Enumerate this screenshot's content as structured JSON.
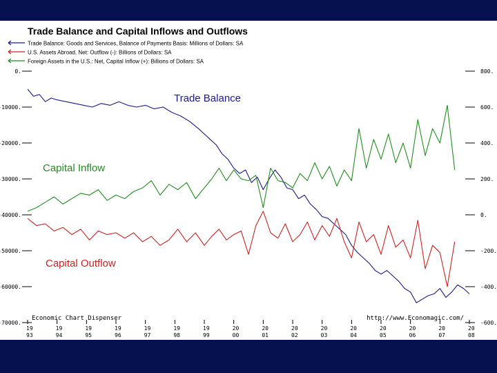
{
  "chart_data": {
    "type": "line",
    "title": "Trade Balance and Capital Inflows and Outflows",
    "legend_placement": "top-left",
    "x_ticks": [
      "19 93",
      "19 94",
      "19 95",
      "19 96",
      "19 97",
      "19 98",
      "19 99",
      "20 00",
      "20 01",
      "20 02",
      "20 03",
      "20 04",
      "20 05",
      "20 06",
      "20 07",
      "20 08"
    ],
    "left_axis": {
      "ticks": [
        "0.",
        "-10000.",
        "-20000.",
        "-30000.",
        "-40000.",
        "-50000.",
        "-60000.",
        "-70000."
      ],
      "ylim": [
        -70000,
        0
      ]
    },
    "right_axis": {
      "ticks": [
        "800.",
        "600.",
        "400.",
        "200.",
        "0.",
        "-200.",
        "-400.",
        "-600."
      ],
      "ylim": [
        -600,
        800
      ]
    },
    "series": [
      {
        "name": "Trade Balance: Goods and Services, Balance of Payments Basis: Millions of Dollars: SA",
        "axis": "left",
        "color": "#1a1a8c",
        "x": [
          1993.0,
          1993.2,
          1993.4,
          1993.6,
          1993.8,
          1994.0,
          1994.3,
          1994.6,
          1994.9,
          1995.2,
          1995.5,
          1995.8,
          1996.1,
          1996.4,
          1996.7,
          1997.0,
          1997.3,
          1997.6,
          1997.9,
          1998.2,
          1998.5,
          1998.8,
          1999.0,
          1999.2,
          1999.4,
          1999.6,
          1999.8,
          2000.0,
          2000.2,
          2000.4,
          2000.6,
          2000.8,
          2001.0,
          2001.2,
          2001.4,
          2001.6,
          2001.8,
          2002.0,
          2002.2,
          2002.4,
          2002.6,
          2002.8,
          2003.0,
          2003.2,
          2003.4,
          2003.6,
          2003.8,
          2004.0,
          2004.2,
          2004.4,
          2004.6,
          2004.8,
          2005.0,
          2005.2,
          2005.4,
          2005.6,
          2005.8,
          2006.0,
          2006.2,
          2006.4,
          2006.6,
          2006.8,
          2007.0,
          2007.2,
          2007.4,
          2007.6,
          2007.8,
          2008.0
        ],
        "values": [
          -5000,
          -7000,
          -6500,
          -8500,
          -7500,
          -8000,
          -8500,
          -9000,
          -9500,
          -10000,
          -9000,
          -9500,
          -8500,
          -9500,
          -10000,
          -9500,
          -10500,
          -10000,
          -11500,
          -12500,
          -14000,
          -16000,
          -17500,
          -19000,
          -20500,
          -23000,
          -24500,
          -27000,
          -28500,
          -27500,
          -31000,
          -29500,
          -33000,
          -30000,
          -27500,
          -29500,
          -32500,
          -33000,
          -35500,
          -34500,
          -37000,
          -38500,
          -40500,
          -41000,
          -42500,
          -44000,
          -45500,
          -48500,
          -50500,
          -52000,
          -53500,
          -55500,
          -56500,
          -55500,
          -57000,
          -58500,
          -60500,
          -61500,
          -64500,
          -63500,
          -62500,
          -62000,
          -60500,
          -63000,
          -61500,
          -59500,
          -60500,
          -62000
        ]
      },
      {
        "name": "U.S. Assets Abroad, Net: Outflow (-): Billions of Dollars: SA",
        "axis": "right",
        "color": "#cc2222",
        "x": [
          1993.0,
          1993.3,
          1993.6,
          1993.9,
          1994.2,
          1994.5,
          1994.8,
          1995.1,
          1995.4,
          1995.7,
          1996.0,
          1996.3,
          1996.6,
          1996.9,
          1997.2,
          1997.5,
          1997.8,
          1998.1,
          1998.4,
          1998.7,
          1999.0,
          1999.25,
          1999.5,
          1999.75,
          2000.0,
          2000.25,
          2000.5,
          2000.75,
          2001.0,
          2001.25,
          2001.5,
          2001.75,
          2002.0,
          2002.25,
          2002.5,
          2002.75,
          2003.0,
          2003.25,
          2003.5,
          2003.75,
          2004.0,
          2004.25,
          2004.5,
          2004.75,
          2005.0,
          2005.25,
          2005.5,
          2005.75,
          2006.0,
          2006.25,
          2006.5,
          2006.75,
          2007.0,
          2007.25,
          2007.5
        ],
        "values": [
          -20,
          -60,
          -50,
          -90,
          -70,
          -110,
          -80,
          -140,
          -90,
          -110,
          -100,
          -130,
          -100,
          -150,
          -120,
          -170,
          -140,
          -80,
          -150,
          -100,
          -170,
          -120,
          -80,
          -140,
          -110,
          -90,
          -220,
          -60,
          20,
          -100,
          -130,
          -50,
          -150,
          -110,
          -40,
          -140,
          -60,
          -120,
          -20,
          -150,
          -240,
          -40,
          -150,
          -110,
          -220,
          -60,
          -180,
          -140,
          -240,
          -30,
          -300,
          -170,
          -210,
          -400,
          -150
        ]
      },
      {
        "name": "Foreign Assets in the U.S.: Net, Capital Inflow (+): Billions of Dollars: SA",
        "axis": "right",
        "color": "#228b22",
        "x": [
          1993.0,
          1993.3,
          1993.6,
          1993.9,
          1994.2,
          1994.5,
          1994.8,
          1995.1,
          1995.4,
          1995.7,
          1996.0,
          1996.3,
          1996.6,
          1996.9,
          1997.2,
          1997.5,
          1997.8,
          1998.1,
          1998.4,
          1998.7,
          1999.0,
          1999.25,
          1999.5,
          1999.75,
          2000.0,
          2000.25,
          2000.5,
          2000.75,
          2001.0,
          2001.25,
          2001.5,
          2001.75,
          2002.0,
          2002.25,
          2002.5,
          2002.75,
          2003.0,
          2003.25,
          2003.5,
          2003.75,
          2004.0,
          2004.25,
          2004.5,
          2004.75,
          2005.0,
          2005.25,
          2005.5,
          2005.75,
          2006.0,
          2006.25,
          2006.5,
          2006.75,
          2007.0,
          2007.25,
          2007.5
        ],
        "values": [
          20,
          40,
          70,
          100,
          60,
          90,
          120,
          110,
          140,
          80,
          110,
          90,
          130,
          150,
          190,
          110,
          170,
          140,
          180,
          90,
          150,
          200,
          260,
          190,
          250,
          200,
          190,
          220,
          40,
          260,
          190,
          180,
          150,
          230,
          190,
          290,
          200,
          270,
          160,
          250,
          190,
          480,
          260,
          420,
          310,
          450,
          290,
          400,
          260,
          530,
          330,
          480,
          400,
          610,
          250
        ]
      }
    ]
  },
  "annotations": {
    "trade_balance": "Trade Balance",
    "capital_inflow": "Capital Inflow",
    "capital_outflow": "Capital Outflow"
  },
  "source_left": "Economic Chart Dispenser",
  "source_right": "http://www.Economagic.com/"
}
